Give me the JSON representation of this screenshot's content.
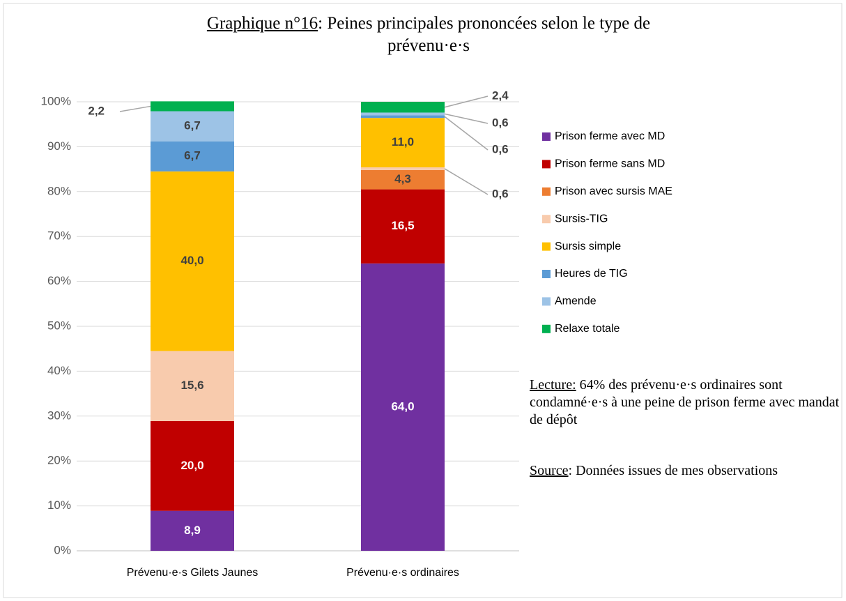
{
  "chart_data": {
    "type": "stacked_bar",
    "title_label": "Graphique n°16",
    "title": ": Peines principales prononcées selon le type de prévenu·e·s",
    "categories": [
      "Prévenu·e·s Gilets Jaunes",
      "Prévenu·e·s ordinaires"
    ],
    "series": [
      {
        "name": "Prison ferme avec MD",
        "color": "#7030a0",
        "values": [
          8.9,
          64.0
        ],
        "value_labels": [
          "8,9",
          "64,0"
        ]
      },
      {
        "name": "Prison ferme sans MD",
        "color": "#c00000",
        "values": [
          20.0,
          16.5
        ],
        "value_labels": [
          "20,0",
          "16,5"
        ]
      },
      {
        "name": "Prison avec sursis MAE",
        "color": "#ed7d31",
        "values": [
          null,
          4.3
        ],
        "value_labels": [
          null,
          "4,3"
        ]
      },
      {
        "name": "Sursis-TIG",
        "color": "#f8cbad",
        "values": [
          15.6,
          0.6
        ],
        "value_labels": [
          "15,6",
          "0,6"
        ]
      },
      {
        "name": "Sursis simple",
        "color": "#ffc000",
        "values": [
          40.0,
          11.0
        ],
        "value_labels": [
          "40,0",
          "11,0"
        ]
      },
      {
        "name": "Heures de TIG",
        "color": "#5b9bd5",
        "values": [
          6.7,
          0.6
        ],
        "value_labels": [
          "6,7",
          "0,6"
        ]
      },
      {
        "name": "Amende",
        "color": "#9dc3e6",
        "values": [
          6.7,
          0.6
        ],
        "value_labels": [
          "6,7",
          "0,6"
        ]
      },
      {
        "name": "Relaxe totale",
        "color": "#00b050",
        "values": [
          2.2,
          2.4
        ],
        "value_labels": [
          "2,2",
          "2,4"
        ]
      }
    ],
    "ylim": [
      0,
      100
    ],
    "yticks": [
      {
        "value": 0,
        "label": "0%"
      },
      {
        "value": 10,
        "label": "10%"
      },
      {
        "value": 20,
        "label": "20%"
      },
      {
        "value": 30,
        "label": "30%"
      },
      {
        "value": 40,
        "label": "40%"
      },
      {
        "value": 50,
        "label": "50%"
      },
      {
        "value": 60,
        "label": "60%"
      },
      {
        "value": 70,
        "label": "70%"
      },
      {
        "value": 80,
        "label": "80%"
      },
      {
        "value": 90,
        "label": "90%"
      },
      {
        "value": 100,
        "label": "100%"
      }
    ],
    "grid": true,
    "legend": "right",
    "notes": [
      {
        "label": "Lecture:",
        "text": " 64% des prévenu·e·s ordinaires sont condamné·e·s à une peine de prison ferme avec mandat de dépôt"
      },
      {
        "label": "Source",
        "text": ": Données issues de mes observations"
      }
    ]
  }
}
